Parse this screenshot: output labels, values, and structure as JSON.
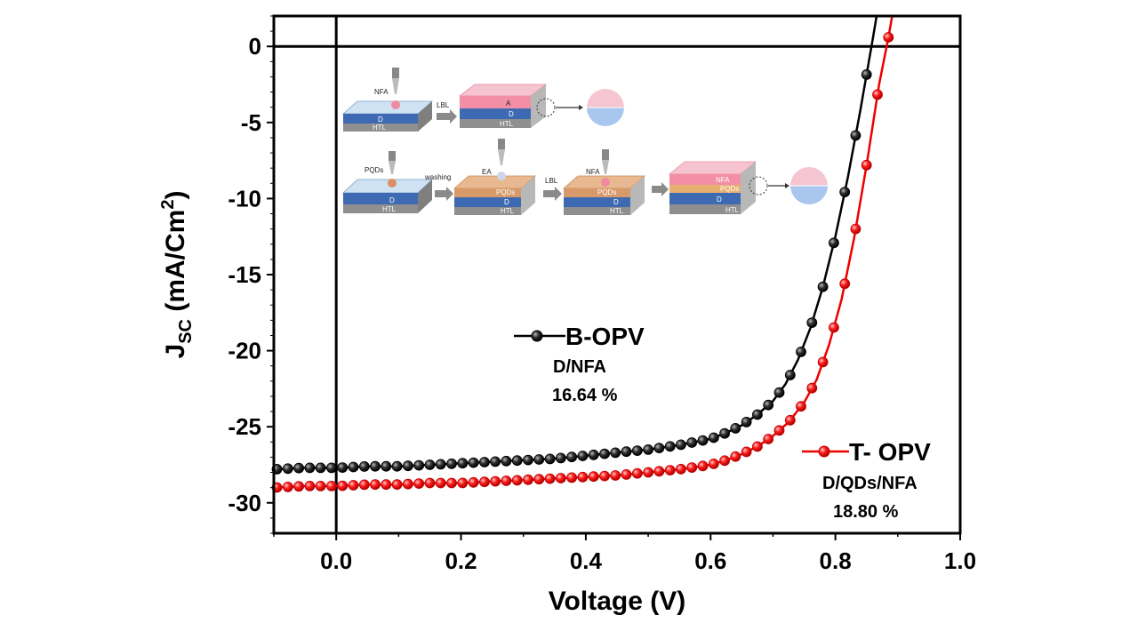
{
  "chart_data": {
    "type": "scatter",
    "xlabel": "Voltage (V)",
    "ylabel_main": "J",
    "ylabel_sub": "SC",
    "ylabel_unit_pre": " (mA/Cm",
    "ylabel_unit_sup": "2",
    "ylabel_unit_post": ")",
    "xlim": [
      -0.1,
      1.0
    ],
    "ylim": [
      -32,
      2
    ],
    "xticks": [
      0.0,
      0.2,
      0.4,
      0.6,
      0.8,
      1.0
    ],
    "xtick_labels": [
      "0.0",
      "0.2",
      "0.4",
      "0.6",
      "0.8",
      "1.0"
    ],
    "yticks": [
      0,
      -5,
      -10,
      -15,
      -20,
      -25,
      -30
    ],
    "ytick_labels": [
      "0",
      "-5",
      "-10",
      "-15",
      "-20",
      "-25",
      "-30"
    ],
    "grid": false,
    "series": [
      {
        "name": "B-OPV",
        "subtitle": "D/NFA",
        "efficiency": "16.64 %",
        "color": "#000000",
        "x": [
          -0.1,
          -0.05,
          0.0,
          0.05,
          0.1,
          0.15,
          0.2,
          0.25,
          0.3,
          0.35,
          0.4,
          0.45,
          0.5,
          0.55,
          0.6,
          0.625,
          0.65,
          0.675,
          0.7,
          0.72,
          0.74,
          0.76,
          0.78,
          0.8,
          0.82,
          0.84,
          0.86
        ],
        "y": [
          -27.8,
          -27.7,
          -27.7,
          -27.6,
          -27.6,
          -27.5,
          -27.4,
          -27.3,
          -27.2,
          -27.1,
          -26.9,
          -26.7,
          -26.5,
          -26.2,
          -25.8,
          -25.4,
          -24.9,
          -24.2,
          -23.3,
          -22.2,
          -20.6,
          -18.5,
          -15.8,
          -12.5,
          -8.6,
          -4.2,
          0.5
        ]
      },
      {
        "name": "T- OPV",
        "subtitle": "D/QDs/NFA",
        "efficiency": "18.80 %",
        "color": "#ee0000",
        "x": [
          -0.1,
          -0.05,
          0.0,
          0.05,
          0.1,
          0.15,
          0.2,
          0.25,
          0.3,
          0.35,
          0.4,
          0.45,
          0.5,
          0.55,
          0.6,
          0.625,
          0.65,
          0.675,
          0.7,
          0.725,
          0.75,
          0.77,
          0.79,
          0.81,
          0.83,
          0.85,
          0.87,
          0.885
        ],
        "y": [
          -29.0,
          -28.9,
          -28.9,
          -28.8,
          -28.8,
          -28.7,
          -28.7,
          -28.6,
          -28.5,
          -28.4,
          -28.3,
          -28.2,
          -28.0,
          -27.8,
          -27.5,
          -27.2,
          -26.8,
          -26.3,
          -25.6,
          -24.7,
          -23.4,
          -21.9,
          -19.6,
          -16.6,
          -12.6,
          -7.8,
          -2.5,
          0.6
        ]
      }
    ],
    "legend": {
      "placement": "center"
    }
  },
  "inset": {
    "labels": {
      "nfa1": "NFA",
      "lbl1": "LBL",
      "a": "A",
      "d1": "D",
      "htl1": "HTL",
      "d2": "D",
      "htl2": "HTL",
      "pqds": "PQDs",
      "washing": "washing",
      "ea": "EA",
      "pqds2": "PQDs",
      "d3": "D",
      "htl3": "HTL",
      "lbl2": "LBL",
      "nfa2": "NFA",
      "pqds3": "PQDs",
      "d4": "D",
      "htl4": "HTL",
      "nfa3": "NFA",
      "pqds4": "PQDs",
      "d5": "D",
      "htl5": "HTL",
      "d0": "D",
      "htl0": "HTL"
    }
  }
}
